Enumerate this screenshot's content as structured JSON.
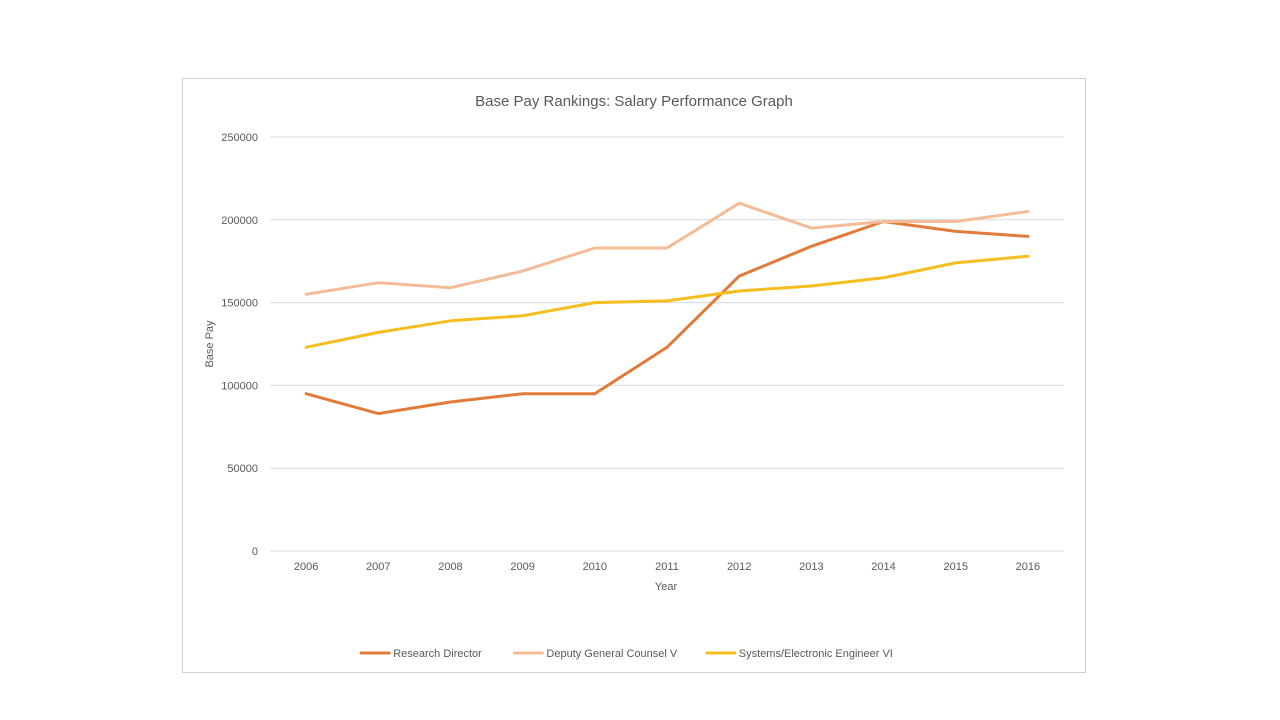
{
  "chart_data": {
    "type": "line",
    "title": "Base Pay Rankings:  Salary Performance Graph",
    "xlabel": "Year",
    "ylabel": "Base Pay",
    "categories": [
      "2006",
      "2007",
      "2008",
      "2009",
      "2010",
      "2011",
      "2012",
      "2013",
      "2014",
      "2015",
      "2016"
    ],
    "ylim": [
      0,
      250000
    ],
    "yticks": [
      0,
      50000,
      100000,
      150000,
      200000,
      250000
    ],
    "ytick_labels": [
      "0",
      "50000",
      "100000",
      "150000",
      "200000",
      "250000"
    ],
    "grid": true,
    "legend_position": "bottom",
    "series": [
      {
        "name": "Research Director",
        "color": "#E07B39",
        "values": [
          95000,
          83000,
          90000,
          95000,
          95000,
          123000,
          166000,
          184000,
          199000,
          193000,
          190000
        ]
      },
      {
        "name": "Deputy General Counsel V",
        "color": "#F4BC96",
        "values": [
          155000,
          162000,
          159000,
          169000,
          183000,
          183000,
          210000,
          195000,
          199000,
          199000,
          205000
        ]
      },
      {
        "name": "Systems/Electronic Engineer VI",
        "color": "#F5BE1E",
        "values": [
          123000,
          132000,
          139000,
          142000,
          150000,
          151000,
          157000,
          160000,
          165000,
          174000,
          178000
        ]
      }
    ]
  }
}
